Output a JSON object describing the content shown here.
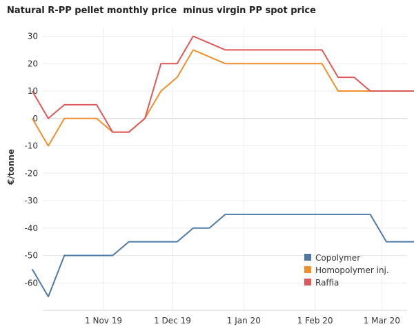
{
  "chart_data": {
    "type": "line",
    "title": "Natural R-PP pellet monthly price  minus virgin PP spot price",
    "xlabel": "",
    "ylabel": "€/tonne",
    "ylim": [
      -70,
      30
    ],
    "yticks": [
      30,
      20,
      10,
      0,
      -10,
      -20,
      -30,
      -40,
      -50,
      -60
    ],
    "ytick_labels": [
      "30",
      "20",
      "10",
      "0",
      "-10",
      "-20",
      "-30",
      "-40",
      "-50",
      "-60"
    ],
    "xlim": [
      -36,
      142
    ],
    "xticks": [
      {
        "value": 0,
        "label": "1 Nov 19"
      },
      {
        "value": 30,
        "label": "1 Dec 19"
      },
      {
        "value": 61,
        "label": "1 Jan 20"
      },
      {
        "value": 92,
        "label": "1 Feb 20"
      },
      {
        "value": 121,
        "label": "1 Mar 20"
      }
    ],
    "x_unit_note": "days relative to 1 Nov 2019",
    "grid": true,
    "legend_position": "bottom-right",
    "series": [
      {
        "name": "Copolymer",
        "color": "#4e79a7",
        "x": [
          -31,
          -24,
          -17,
          -3,
          4,
          11,
          18,
          25,
          32,
          39,
          46,
          53,
          60,
          67,
          74,
          81,
          88,
          95,
          102,
          109,
          116,
          123,
          130,
          137
        ],
        "values": [
          -55,
          -65,
          -50,
          -50,
          -50,
          -45,
          -45,
          -45,
          -45,
          -40,
          -40,
          -35,
          -35,
          -35,
          -35,
          -35,
          -35,
          -35,
          -35,
          -35,
          -35,
          -45,
          -45,
          -45
        ]
      },
      {
        "name": "Homopolymer inj.",
        "color": "#f28e2b",
        "x": [
          -31,
          -24,
          -17,
          -10,
          -3,
          4,
          11,
          18,
          25,
          32,
          39,
          46,
          53,
          60,
          67,
          74,
          81,
          88,
          95,
          102,
          109,
          116,
          123,
          130,
          137
        ],
        "values": [
          0,
          -10,
          0,
          0,
          0,
          -5,
          -5,
          0,
          10,
          15,
          25,
          22.5,
          20,
          20,
          20,
          20,
          20,
          20,
          20,
          10,
          10,
          10,
          10,
          10,
          10
        ]
      },
      {
        "name": "Raffia",
        "color": "#e15759",
        "x": [
          -31,
          -24,
          -17,
          -10,
          -3,
          4,
          11,
          18,
          25,
          32,
          39,
          46,
          53,
          60,
          67,
          74,
          81,
          88,
          95,
          102,
          109,
          116,
          123,
          130,
          137
        ],
        "values": [
          10,
          0,
          5,
          5,
          5,
          -5,
          -5,
          0,
          20,
          20,
          30,
          27.5,
          25,
          25,
          25,
          25,
          25,
          25,
          25,
          15,
          15,
          10,
          10,
          10,
          10
        ]
      }
    ]
  }
}
